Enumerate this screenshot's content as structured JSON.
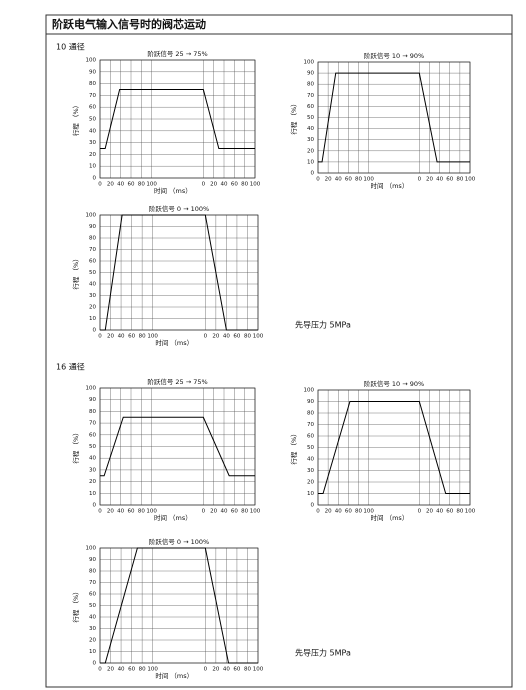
{
  "title": "阶跃电气输入信号时的阀芯运动",
  "sections": [
    {
      "label": "10 通径",
      "note": "先导压力 5MPa"
    },
    {
      "label": "16 通径",
      "note": "先导压力 5MPa"
    }
  ],
  "chart_data": [
    {
      "type": "line",
      "title": "阶跃信号 25 → 75%",
      "x_label": "时间 （ms）",
      "y_label": "行程 （%）",
      "color": "#000000",
      "grid": true,
      "x": [
        0,
        10,
        38,
        200,
        230,
        300
      ],
      "values": [
        25,
        25,
        75,
        75,
        25,
        25
      ],
      "xlim": [
        0,
        300
      ],
      "ylim": [
        0,
        100
      ],
      "xticks": [
        0,
        20,
        40,
        60,
        80,
        100,
        {
          "value": 200,
          "label": "0"
        },
        {
          "value": 220,
          "label": "20"
        },
        {
          "value": 240,
          "label": "40"
        },
        {
          "value": 260,
          "label": "60"
        },
        {
          "value": 280,
          "label": "80"
        },
        {
          "value": 300,
          "label": "100"
        }
      ],
      "yticks": [
        0,
        10,
        20,
        30,
        40,
        50,
        60,
        70,
        80,
        90,
        100
      ]
    },
    {
      "type": "line",
      "title": "阶跃信号 10 → 90%",
      "x_label": "时间 （ms）",
      "y_label": "行程 （%）",
      "color": "#000000",
      "grid": true,
      "x": [
        0,
        8,
        35,
        200,
        235,
        300
      ],
      "values": [
        10,
        10,
        90,
        90,
        10,
        10
      ],
      "xlim": [
        0,
        300
      ],
      "ylim": [
        0,
        100
      ],
      "xticks": [
        0,
        20,
        40,
        60,
        80,
        100,
        {
          "value": 200,
          "label": "0"
        },
        {
          "value": 220,
          "label": "20"
        },
        {
          "value": 240,
          "label": "40"
        },
        {
          "value": 260,
          "label": "60"
        },
        {
          "value": 280,
          "label": "80"
        },
        {
          "value": 300,
          "label": "100"
        }
      ],
      "yticks": [
        0,
        10,
        20,
        30,
        40,
        50,
        60,
        70,
        80,
        90,
        100
      ]
    },
    {
      "type": "line",
      "title": "阶跃信号 0 → 100%",
      "x_label": "时间 （ms）",
      "y_label": "行程 （%）",
      "color": "#000000",
      "grid": true,
      "x": [
        0,
        10,
        42,
        200,
        240,
        300
      ],
      "values": [
        0,
        0,
        100,
        100,
        0,
        0
      ],
      "xlim": [
        0,
        300
      ],
      "ylim": [
        0,
        100
      ],
      "xticks": [
        0,
        20,
        40,
        60,
        80,
        100,
        {
          "value": 200,
          "label": "0"
        },
        {
          "value": 220,
          "label": "20"
        },
        {
          "value": 240,
          "label": "40"
        },
        {
          "value": 260,
          "label": "60"
        },
        {
          "value": 280,
          "label": "80"
        },
        {
          "value": 300,
          "label": "100"
        }
      ],
      "yticks": [
        0,
        10,
        20,
        30,
        40,
        50,
        60,
        70,
        80,
        90,
        100
      ]
    },
    {
      "type": "line",
      "title": "阶跃信号 25 → 75%",
      "x_label": "时间 （ms）",
      "y_label": "行程 （%）",
      "color": "#000000",
      "grid": true,
      "x": [
        0,
        8,
        45,
        200,
        250,
        300
      ],
      "values": [
        25,
        25,
        75,
        75,
        25,
        25
      ],
      "xlim": [
        0,
        300
      ],
      "ylim": [
        0,
        100
      ],
      "xticks": [
        0,
        20,
        40,
        60,
        80,
        100,
        {
          "value": 200,
          "label": "0"
        },
        {
          "value": 220,
          "label": "20"
        },
        {
          "value": 240,
          "label": "40"
        },
        {
          "value": 260,
          "label": "60"
        },
        {
          "value": 280,
          "label": "80"
        },
        {
          "value": 300,
          "label": "100"
        }
      ],
      "yticks": [
        0,
        10,
        20,
        30,
        40,
        50,
        60,
        70,
        80,
        90,
        100
      ]
    },
    {
      "type": "line",
      "title": "阶跃信号 10 → 90%",
      "x_label": "时间 （ms）",
      "y_label": "行程 （%）",
      "color": "#000000",
      "grid": true,
      "x": [
        0,
        10,
        63,
        200,
        252,
        300
      ],
      "values": [
        10,
        10,
        90,
        90,
        10,
        10
      ],
      "xlim": [
        0,
        300
      ],
      "ylim": [
        0,
        100
      ],
      "xticks": [
        0,
        20,
        40,
        60,
        80,
        100,
        {
          "value": 200,
          "label": "0"
        },
        {
          "value": 220,
          "label": "20"
        },
        {
          "value": 240,
          "label": "40"
        },
        {
          "value": 260,
          "label": "60"
        },
        {
          "value": 280,
          "label": "80"
        },
        {
          "value": 300,
          "label": "100"
        }
      ],
      "yticks": [
        0,
        10,
        20,
        30,
        40,
        50,
        60,
        70,
        80,
        90,
        100
      ]
    },
    {
      "type": "line",
      "title": "阶跃信号 0 → 100%",
      "x_label": "时间 （ms）",
      "y_label": "行程 （%）",
      "color": "#000000",
      "grid": true,
      "x": [
        0,
        10,
        71,
        200,
        244,
        300
      ],
      "values": [
        0,
        0,
        100,
        100,
        0,
        0
      ],
      "xlim": [
        0,
        300
      ],
      "ylim": [
        0,
        100
      ],
      "xticks": [
        0,
        20,
        40,
        60,
        80,
        100,
        {
          "value": 200,
          "label": "0"
        },
        {
          "value": 220,
          "label": "20"
        },
        {
          "value": 240,
          "label": "40"
        },
        {
          "value": 260,
          "label": "60"
        },
        {
          "value": 280,
          "label": "80"
        },
        {
          "value": 300,
          "label": "100"
        }
      ],
      "yticks": [
        0,
        10,
        20,
        30,
        40,
        50,
        60,
        70,
        80,
        90,
        100
      ]
    }
  ]
}
